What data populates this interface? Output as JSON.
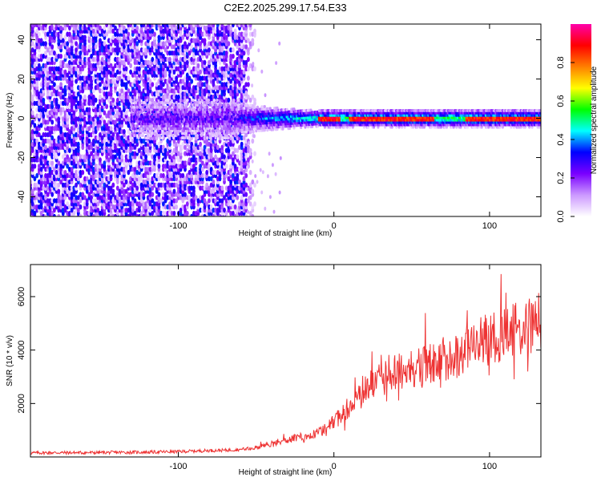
{
  "title": "C2E2.2025.299.17.54.E33",
  "colors": {
    "snr_line": "#ee3333",
    "axes": "#000000",
    "background": "#ffffff"
  },
  "chart_data": [
    {
      "type": "heatmap",
      "title": "C2E2.2025.299.17.54.E33",
      "xlabel": "Height of straight line (km)",
      "ylabel": "Frequency (Hz)",
      "xlim": [
        -195,
        133
      ],
      "ylim": [
        -50,
        48
      ],
      "xticks": [
        -100,
        0,
        100
      ],
      "xtick_labels": [
        "-100",
        "0",
        "100"
      ],
      "yticks": [
        -40,
        -20,
        0,
        20,
        40
      ],
      "ytick_labels": [
        "-40",
        "-20",
        "0",
        "20",
        "40"
      ],
      "description_values": {
        "noise_region_x": [
          -195,
          -58
        ],
        "signal_center_hz": 0,
        "signal_start_x": -130,
        "strong_signal_segments_x": [
          [
            -10,
            5
          ],
          [
            10,
            65
          ],
          [
            85,
            133
          ]
        ]
      },
      "colorbar": {
        "label": "Normalized spectral amplitude",
        "range": [
          0,
          1
        ],
        "ticks": [
          0.0,
          0.2,
          0.4,
          0.6,
          0.8
        ],
        "tick_labels": [
          "0.0",
          "0.2",
          "0.4",
          "0.6",
          "0.8"
        ],
        "colormap": [
          "#ffffff",
          "#cc99ff",
          "#7a00ff",
          "#0000ff",
          "#00ffff",
          "#00ff00",
          "#ffff00",
          "#ff7f00",
          "#ff0000",
          "#ff00aa"
        ]
      }
    },
    {
      "type": "line",
      "xlabel": "Height of straight line (km)",
      "ylabel": "SNR (10 * v/v)",
      "xlim": [
        -195,
        133
      ],
      "ylim": [
        0,
        7200
      ],
      "xticks": [
        -100,
        0,
        100
      ],
      "xtick_labels": [
        "-100",
        "0",
        "100"
      ],
      "yticks": [
        2000,
        4000,
        6000
      ],
      "ytick_labels": [
        "2000",
        "4000",
        "6000"
      ],
      "series": [
        {
          "name": "SNR",
          "x": [
            -195,
            -180,
            -160,
            -140,
            -120,
            -100,
            -90,
            -80,
            -70,
            -60,
            -50,
            -40,
            -30,
            -20,
            -10,
            0,
            10,
            20,
            30,
            40,
            50,
            60,
            70,
            80,
            90,
            100,
            110,
            120,
            130
          ],
          "values": [
            150,
            160,
            160,
            170,
            180,
            200,
            220,
            240,
            250,
            280,
            350,
            500,
            650,
            750,
            900,
            1300,
            1900,
            2500,
            2900,
            3200,
            3300,
            3500,
            3600,
            3800,
            4200,
            4500,
            4600,
            4800,
            4900
          ]
        }
      ]
    }
  ]
}
